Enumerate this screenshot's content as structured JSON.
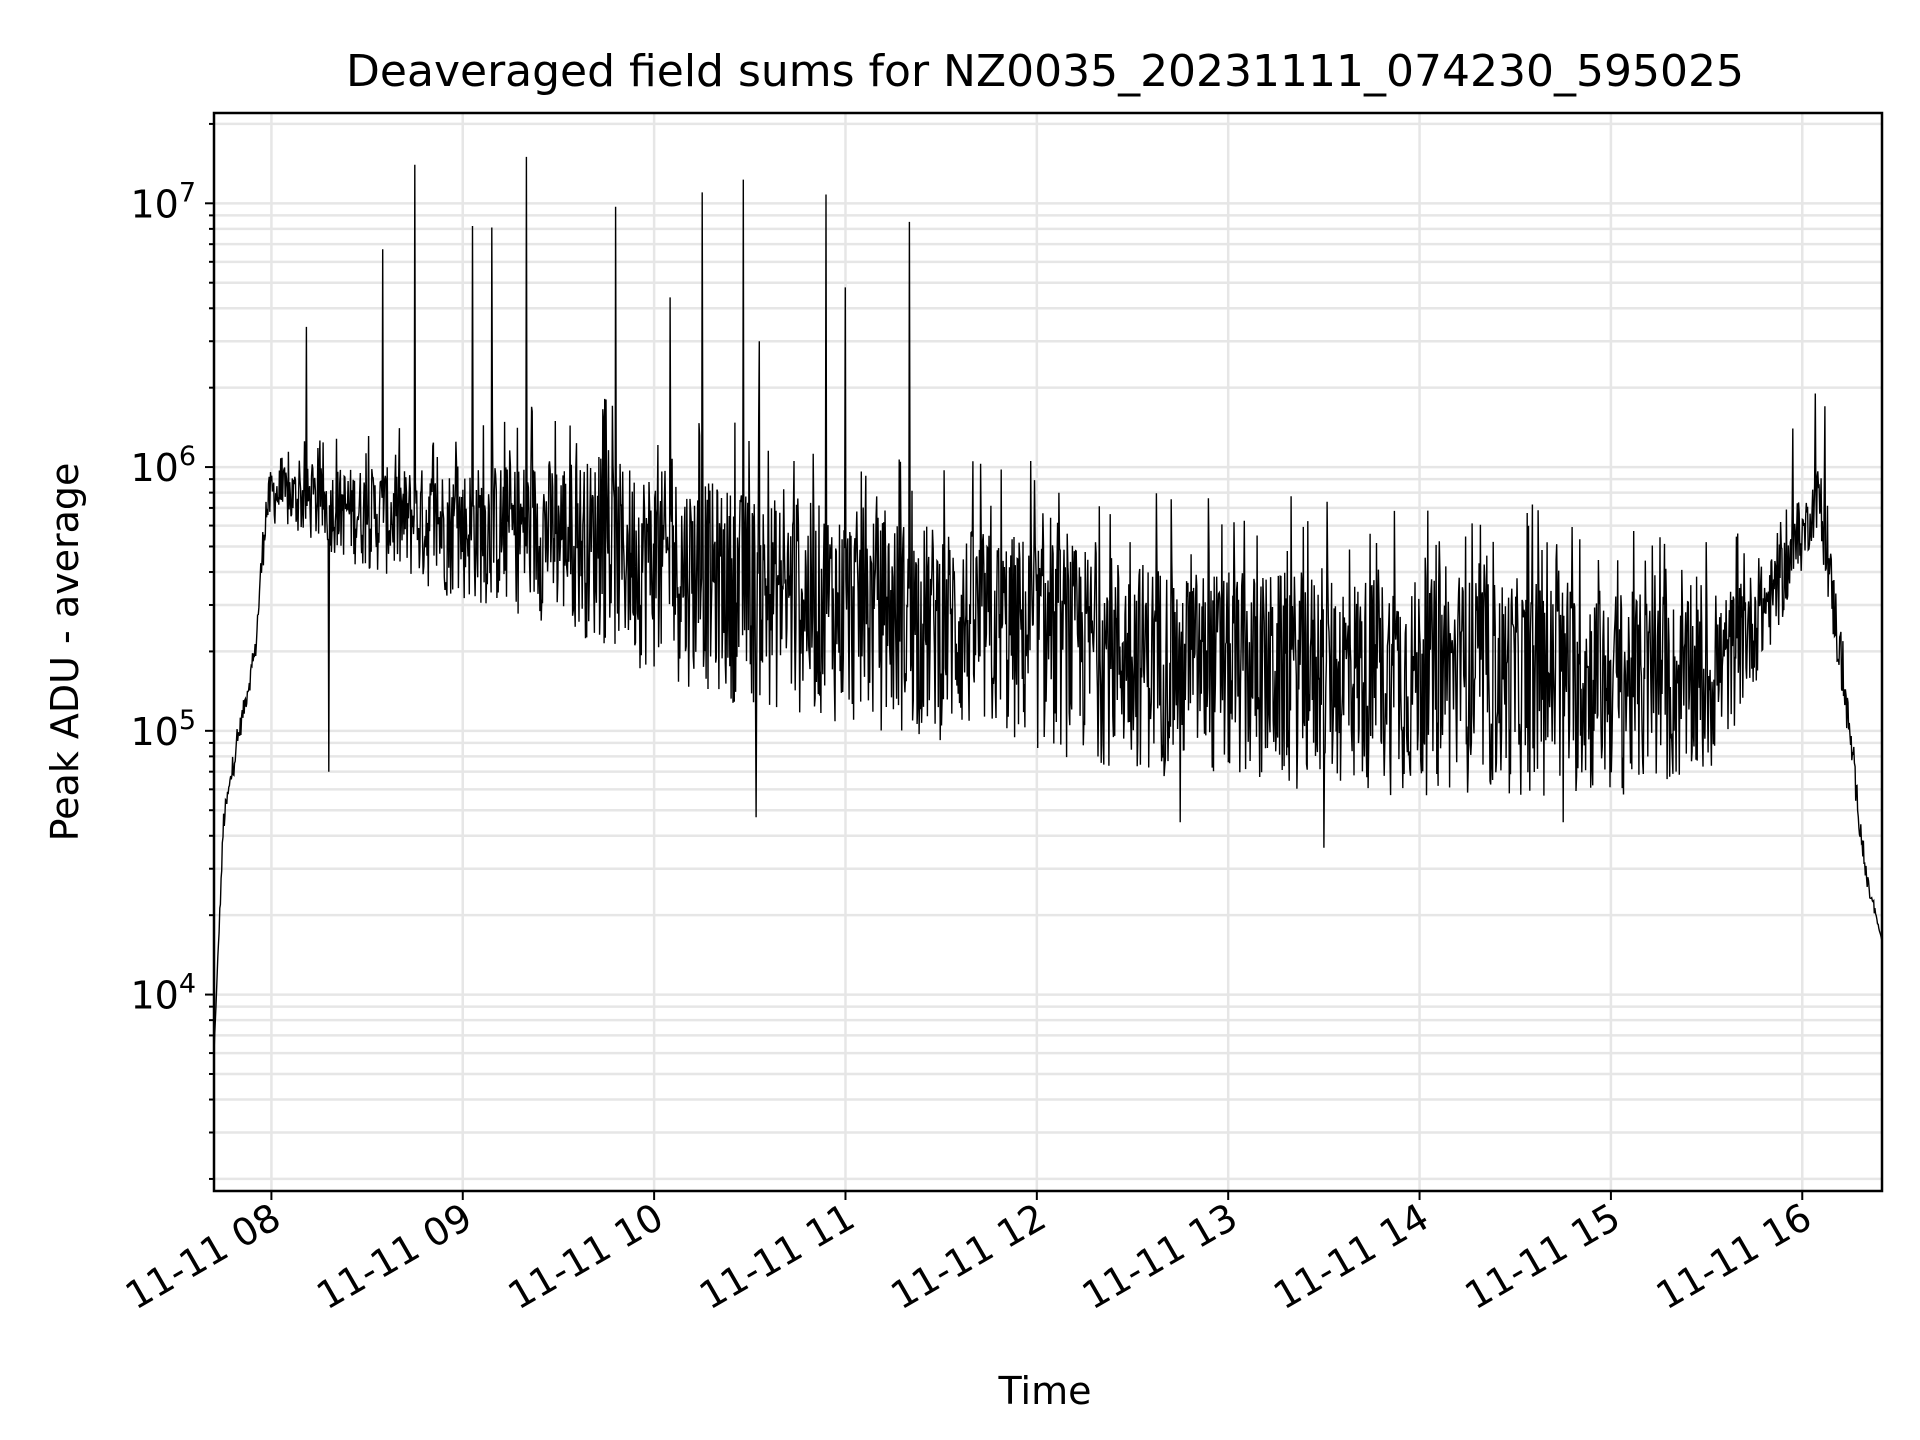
{
  "chart_data": {
    "type": "line",
    "title": "Deaveraged field sums for NZ0035_20231111_074230_595025",
    "xlabel": "Time",
    "ylabel": "Peak ADU - average",
    "y_scale": "log",
    "ylim": [
      1800,
      22000000
    ],
    "xlim": [
      "2023-11-11 07:42",
      "2023-11-11 16:25"
    ],
    "grid": true,
    "x_tick_labels": [
      "11-11 08",
      "11-11 09",
      "11-11 10",
      "11-11 11",
      "11-11 12",
      "11-11 13",
      "11-11 14",
      "11-11 15",
      "11-11 16"
    ],
    "x_ticks": [
      "2023-11-11 08:00",
      "2023-11-11 09:00",
      "2023-11-11 10:00",
      "2023-11-11 11:00",
      "2023-11-11 12:00",
      "2023-11-11 13:00",
      "2023-11-11 14:00",
      "2023-11-11 15:00",
      "2023-11-11 16:00"
    ],
    "y_ticks": [
      {
        "value": 10000,
        "base": "10",
        "exp": "4"
      },
      {
        "value": 100000,
        "base": "10",
        "exp": "5"
      },
      {
        "value": 1000000,
        "base": "10",
        "exp": "6"
      },
      {
        "value": 10000000,
        "base": "10",
        "exp": "7"
      }
    ],
    "series": [
      {
        "color": "#000000",
        "baseline": {
          "x": [
            "2023-11-11 07:42",
            "2023-11-11 07:45",
            "2023-11-11 07:50",
            "2023-11-11 07:55",
            "2023-11-11 07:58",
            "2023-11-11 08:00",
            "2023-11-11 08:30",
            "2023-11-11 09:00",
            "2023-11-11 09:30",
            "2023-11-11 10:00",
            "2023-11-11 10:30",
            "2023-11-11 11:00",
            "2023-11-11 11:30",
            "2023-11-11 12:00",
            "2023-11-11 12:30",
            "2023-11-11 13:00",
            "2023-11-11 13:30",
            "2023-11-11 14:00",
            "2023-11-11 14:30",
            "2023-11-11 15:00",
            "2023-11-11 15:30",
            "2023-11-11 15:50",
            "2023-11-11 16:00",
            "2023-11-11 16:05",
            "2023-11-11 16:10",
            "2023-11-11 16:15",
            "2023-11-11 16:20",
            "2023-11-11 16:25"
          ],
          "low": [
            6000,
            40000,
            90000,
            180000,
            500000,
            600000,
            400000,
            300000,
            250000,
            160000,
            120000,
            100000,
            90000,
            80000,
            70000,
            60000,
            58000,
            56000,
            55000,
            54000,
            60000,
            200000,
            400000,
            600000,
            200000,
            80000,
            25000,
            16000
          ],
          "high": [
            6000,
            50000,
            110000,
            220000,
            800000,
            1000000,
            1000000,
            1000000,
            1100000,
            1000000,
            800000,
            700000,
            600000,
            550000,
            450000,
            400000,
            400000,
            380000,
            380000,
            350000,
            300000,
            450000,
            700000,
            1000000,
            400000,
            110000,
            30000,
            16000
          ]
        },
        "spikes": {
          "x": [
            "2023-11-11 08:11",
            "2023-11-11 08:35",
            "2023-11-11 08:45",
            "2023-11-11 09:03",
            "2023-11-11 09:09",
            "2023-11-11 09:20",
            "2023-11-11 09:48",
            "2023-11-11 10:05",
            "2023-11-11 10:15",
            "2023-11-11 10:28",
            "2023-11-11 10:33",
            "2023-11-11 10:54",
            "2023-11-11 11:00",
            "2023-11-11 11:20",
            "2023-11-11 15:57",
            "2023-11-11 16:04",
            "2023-11-11 16:07"
          ],
          "y": [
            3400000,
            6700000,
            14000000,
            8200000,
            8100000,
            15000000,
            9700000,
            4400000,
            11000000,
            12300000,
            3000000,
            10800000,
            4800000,
            8500000,
            1400000,
            1900000,
            1700000
          ]
        },
        "dips": {
          "x": [
            "2023-11-11 08:18",
            "2023-11-11 10:32",
            "2023-11-11 12:45",
            "2023-11-11 13:30",
            "2023-11-11 14:45"
          ],
          "y": [
            70000,
            47000,
            45000,
            36000,
            45000
          ]
        }
      }
    ]
  }
}
